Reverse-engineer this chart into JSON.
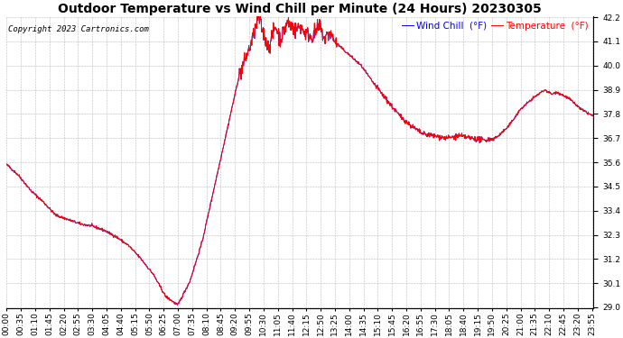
{
  "title": "Outdoor Temperature vs Wind Chill per Minute (24 Hours) 20230305",
  "copyright": "Copyright 2023 Cartronics.com",
  "legend_wind_chill": "Wind Chill  (°F)",
  "legend_temperature": "Temperature  (°F)",
  "wind_chill_color": "blue",
  "temperature_color": "red",
  "ylim_min": 29.0,
  "ylim_max": 42.2,
  "yticks": [
    29.0,
    30.1,
    31.2,
    32.3,
    33.4,
    34.5,
    35.6,
    36.7,
    37.8,
    38.9,
    40.0,
    41.1,
    42.2
  ],
  "background_color": "white",
  "grid_color": "#bbbbbb",
  "title_fontsize": 10,
  "tick_fontsize": 6.5,
  "copyright_fontsize": 6.5
}
